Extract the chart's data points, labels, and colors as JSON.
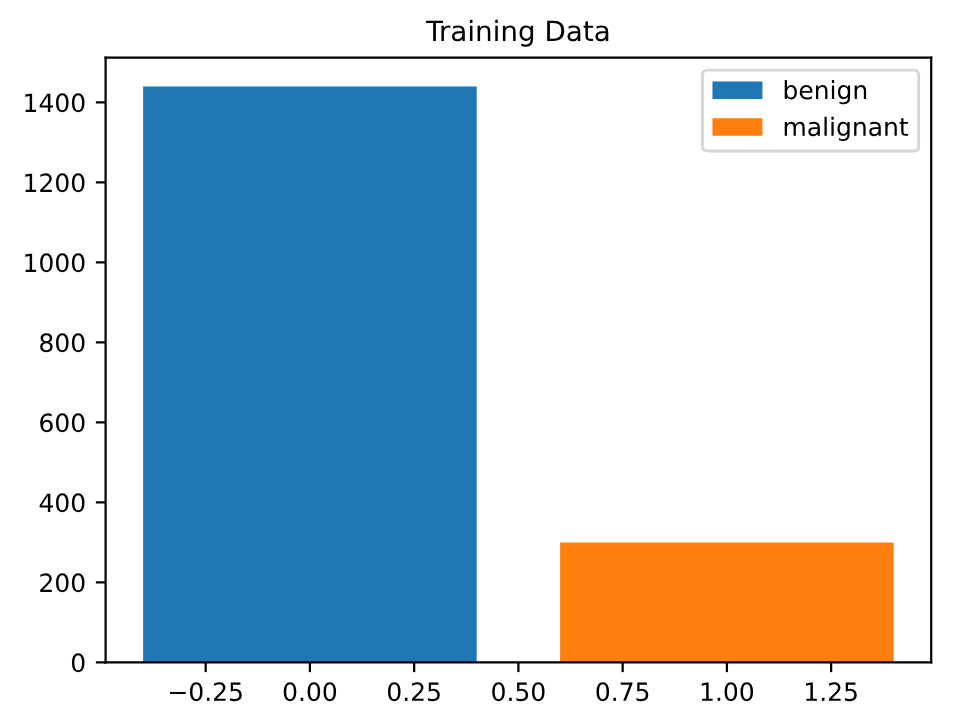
{
  "chart_data": {
    "type": "bar",
    "title": "Training Data",
    "series": [
      {
        "name": "benign",
        "color": "#1f77b4",
        "x": [
          0
        ],
        "values": [
          1440
        ]
      },
      {
        "name": "malignant",
        "color": "#ff7f0e",
        "x": [
          1
        ],
        "values": [
          300
        ]
      }
    ],
    "xlim": [
      -0.49,
      1.49
    ],
    "xticks": [
      {
        "value": -0.25,
        "label": "−0.25"
      },
      {
        "value": 0,
        "label": "0.00"
      },
      {
        "value": 0.25,
        "label": "0.25"
      },
      {
        "value": 0.5,
        "label": "0.50"
      },
      {
        "value": 0.75,
        "label": "0.75"
      },
      {
        "value": 1,
        "label": "1.00"
      },
      {
        "value": 1.25,
        "label": "1.25"
      }
    ],
    "ylim": [
      0,
      1512
    ],
    "yticks": [
      0,
      200,
      400,
      600,
      800,
      1000,
      1200,
      1400
    ],
    "legend": "top right"
  }
}
